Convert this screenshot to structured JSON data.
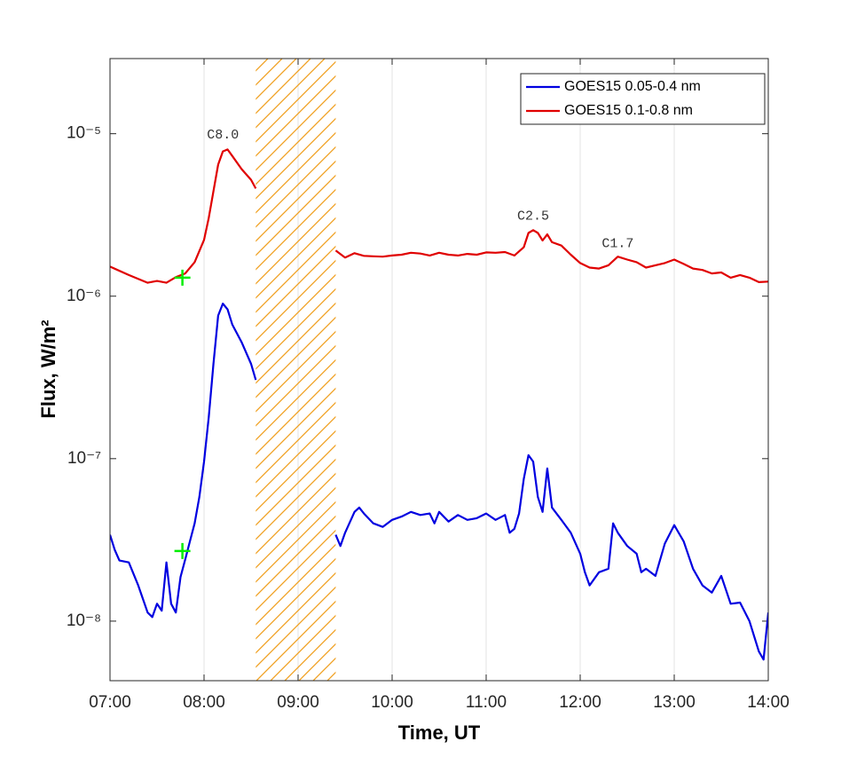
{
  "chart_data": {
    "type": "line",
    "xlabel": "Time, UT",
    "ylabel": "Flux, W/m²",
    "log_y": true,
    "grid_x": true,
    "legend": "upper right",
    "xlim": [
      7,
      14
    ],
    "xticks": [
      {
        "value": 7,
        "label": "07:00"
      },
      {
        "value": 8,
        "label": "08:00"
      },
      {
        "value": 9,
        "label": "09:00"
      },
      {
        "value": 10,
        "label": "10:00"
      },
      {
        "value": 11,
        "label": "11:00"
      },
      {
        "value": 12,
        "label": "12:00"
      },
      {
        "value": 13,
        "label": "13:00"
      },
      {
        "value": 14,
        "label": "14:00"
      }
    ],
    "ylim": [
      4.3e-09,
      2.9e-05
    ],
    "yticks": [
      {
        "value": 1e-08,
        "label": "10⁻⁸"
      },
      {
        "value": 1e-07,
        "label": "10⁻⁷"
      },
      {
        "value": 1e-06,
        "label": "10⁻⁶"
      },
      {
        "value": 1e-05,
        "label": "10⁻⁵"
      }
    ],
    "series": [
      {
        "name": "GOES15 0.05-0.4 nm",
        "color": "#0000e0",
        "x": [
          7.0,
          7.05,
          7.1,
          7.2,
          7.3,
          7.35,
          7.4,
          7.45,
          7.5,
          7.55,
          7.6,
          7.65,
          7.7,
          7.75,
          7.8,
          7.85,
          7.9,
          7.95,
          8.0,
          8.05,
          8.1,
          8.15,
          8.2,
          8.25,
          8.3,
          8.4,
          8.5,
          8.55,
          8.6,
          9.4,
          9.45,
          9.5,
          9.6,
          9.65,
          9.7,
          9.8,
          9.9,
          10.0,
          10.1,
          10.2,
          10.3,
          10.4,
          10.45,
          10.5,
          10.6,
          10.7,
          10.8,
          10.9,
          11.0,
          11.1,
          11.2,
          11.25,
          11.3,
          11.35,
          11.4,
          11.45,
          11.5,
          11.55,
          11.6,
          11.65,
          11.7,
          11.8,
          11.9,
          12.0,
          12.05,
          12.1,
          12.2,
          12.3,
          12.35,
          12.4,
          12.5,
          12.6,
          12.65,
          12.7,
          12.8,
          12.9,
          13.0,
          13.1,
          13.2,
          13.3,
          13.4,
          13.5,
          13.6,
          13.7,
          13.8,
          13.9,
          13.95,
          14.0
        ],
        "values": [
          3.4e-08,
          2.75e-08,
          2.36e-08,
          2.3e-08,
          1.66e-08,
          1.37e-08,
          1.13e-08,
          1.06e-08,
          1.28e-08,
          1.16e-08,
          2.3e-08,
          1.28e-08,
          1.13e-08,
          1.87e-08,
          2.4e-08,
          3.1e-08,
          4e-08,
          5.8e-08,
          9.6e-08,
          1.8e-07,
          3.83e-07,
          7.6e-07,
          9e-07,
          8.3e-07,
          6.7e-07,
          5.2e-07,
          3.83e-07,
          3.05e-07,
          null,
          3.4e-08,
          2.9e-08,
          3.5e-08,
          4.7e-08,
          5e-08,
          4.6e-08,
          4e-08,
          3.8e-08,
          4.2e-08,
          4.4e-08,
          4.7e-08,
          4.5e-08,
          4.6e-08,
          4e-08,
          4.7e-08,
          4.1e-08,
          4.5e-08,
          4.2e-08,
          4.3e-08,
          4.6e-08,
          4.2e-08,
          4.5e-08,
          3.5e-08,
          3.7e-08,
          4.6e-08,
          7.5e-08,
          1.05e-07,
          9.6e-08,
          5.8e-08,
          4.7e-08,
          8.7e-08,
          5e-08,
          4.2e-08,
          3.5e-08,
          2.6e-08,
          2e-08,
          1.66e-08,
          2e-08,
          2.1e-08,
          4e-08,
          3.5e-08,
          2.9e-08,
          2.6e-08,
          2e-08,
          2.1e-08,
          1.9e-08,
          3e-08,
          3.9e-08,
          3.1e-08,
          2.1e-08,
          1.66e-08,
          1.5e-08,
          1.9e-08,
          1.28e-08,
          1.3e-08,
          1e-08,
          6.5e-09,
          5.8e-09,
          1.13e-08
        ]
      },
      {
        "name": "GOES15 0.1-0.8 nm",
        "color": "#e00000",
        "x": [
          7.0,
          7.2,
          7.4,
          7.5,
          7.6,
          7.7,
          7.8,
          7.9,
          8.0,
          8.05,
          8.1,
          8.15,
          8.2,
          8.25,
          8.3,
          8.4,
          8.5,
          8.55,
          8.6,
          9.4,
          9.5,
          9.6,
          9.7,
          9.8,
          9.9,
          10.0,
          10.1,
          10.2,
          10.3,
          10.4,
          10.5,
          10.6,
          10.7,
          10.8,
          10.9,
          11.0,
          11.1,
          11.2,
          11.3,
          11.4,
          11.45,
          11.5,
          11.55,
          11.6,
          11.65,
          11.7,
          11.8,
          11.9,
          12.0,
          12.1,
          12.2,
          12.3,
          12.4,
          12.5,
          12.6,
          12.7,
          12.8,
          12.9,
          13.0,
          13.1,
          13.2,
          13.3,
          13.4,
          13.5,
          13.6,
          13.7,
          13.8,
          13.9,
          14.0
        ],
        "values": [
          1.52e-06,
          1.35e-06,
          1.21e-06,
          1.24e-06,
          1.21e-06,
          1.31e-06,
          1.38e-06,
          1.62e-06,
          2.22e-06,
          3.03e-06,
          4.43e-06,
          6.45e-06,
          7.78e-06,
          8e-06,
          7.3e-06,
          6.05e-06,
          5.2e-06,
          4.6e-06,
          null,
          1.91e-06,
          1.73e-06,
          1.84e-06,
          1.77e-06,
          1.76e-06,
          1.75e-06,
          1.78e-06,
          1.8e-06,
          1.85e-06,
          1.83e-06,
          1.78e-06,
          1.85e-06,
          1.8e-06,
          1.78e-06,
          1.82e-06,
          1.8e-06,
          1.86e-06,
          1.85e-06,
          1.87e-06,
          1.78e-06,
          2e-06,
          2.45e-06,
          2.55e-06,
          2.45e-06,
          2.2e-06,
          2.4e-06,
          2.15e-06,
          2.05e-06,
          1.8e-06,
          1.6e-06,
          1.5e-06,
          1.48e-06,
          1.55e-06,
          1.75e-06,
          1.68e-06,
          1.62e-06,
          1.5e-06,
          1.55e-06,
          1.6e-06,
          1.68e-06,
          1.58e-06,
          1.48e-06,
          1.45e-06,
          1.38e-06,
          1.4e-06,
          1.3e-06,
          1.35e-06,
          1.3e-06,
          1.22e-06,
          1.23e-06
        ]
      }
    ],
    "data_gap": {
      "xlim": [
        8.55,
        9.4
      ],
      "color": "#f0a020"
    },
    "markers": {
      "color": "#00ee00",
      "x": [
        7.77,
        7.77
      ],
      "values": [
        1.3e-06,
        2.7e-08
      ]
    },
    "annotations": [
      {
        "text": "C8.0",
        "x": 8.2,
        "y": 9.8e-06
      },
      {
        "text": "C2.5",
        "x": 11.5,
        "y": 3.1e-06
      },
      {
        "text": "C1.7",
        "x": 12.4,
        "y": 2.1e-06
      }
    ]
  }
}
